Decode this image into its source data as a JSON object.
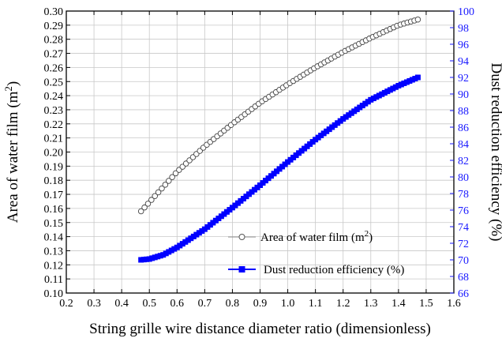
{
  "chart_data": {
    "type": "scatter",
    "title": "",
    "xlabel": "String grille wire distance diameter ratio (dimensionless)",
    "ylabel_left": "Area of water film",
    "ylabel_left_unit": "(m",
    "ylabel_left_sup": "2",
    "ylabel_left_close": ")",
    "ylabel_right": "Dust reduction efficiency (%)",
    "xlim": [
      0.2,
      1.6
    ],
    "ylim_left": [
      0.1,
      0.3
    ],
    "ylim_right": [
      66,
      100
    ],
    "x_ticks": [
      0.2,
      0.3,
      0.4,
      0.5,
      0.6,
      0.7,
      0.8,
      0.9,
      1.0,
      1.1,
      1.2,
      1.3,
      1.4,
      1.5,
      1.6
    ],
    "y_left_ticks": [
      0.1,
      0.11,
      0.12,
      0.13,
      0.14,
      0.15,
      0.16,
      0.17,
      0.18,
      0.19,
      0.2,
      0.21,
      0.22,
      0.23,
      0.24,
      0.25,
      0.26,
      0.27,
      0.28,
      0.29,
      0.3
    ],
    "y_right_ticks": [
      66,
      68,
      70,
      72,
      74,
      76,
      78,
      80,
      82,
      84,
      86,
      88,
      90,
      92,
      94,
      96,
      98,
      100
    ],
    "grid": true,
    "legend_position": "lower-right",
    "series": [
      {
        "name": "Area of water film (m",
        "name_sup": "2",
        "name_close": ")",
        "axis": "left",
        "marker": "open-circle",
        "color": "#000000",
        "x": [
          0.47,
          0.6,
          0.7,
          0.8,
          0.9,
          1.0,
          1.1,
          1.2,
          1.3,
          1.4,
          1.47
        ],
        "y": [
          0.158,
          0.186,
          0.204,
          0.22,
          0.235,
          0.248,
          0.26,
          0.271,
          0.281,
          0.29,
          0.294
        ]
      },
      {
        "name": "Dust reduction efficiency (%)",
        "axis": "right",
        "marker": "filled-square",
        "color": "#0000ff",
        "x": [
          0.47,
          0.5,
          0.55,
          0.6,
          0.7,
          0.8,
          0.9,
          1.0,
          1.1,
          1.2,
          1.3,
          1.4,
          1.47
        ],
        "y": [
          70.0,
          70.1,
          70.6,
          71.5,
          73.7,
          76.3,
          79.0,
          81.8,
          84.5,
          87.0,
          89.3,
          91.0,
          92.0
        ]
      }
    ]
  }
}
